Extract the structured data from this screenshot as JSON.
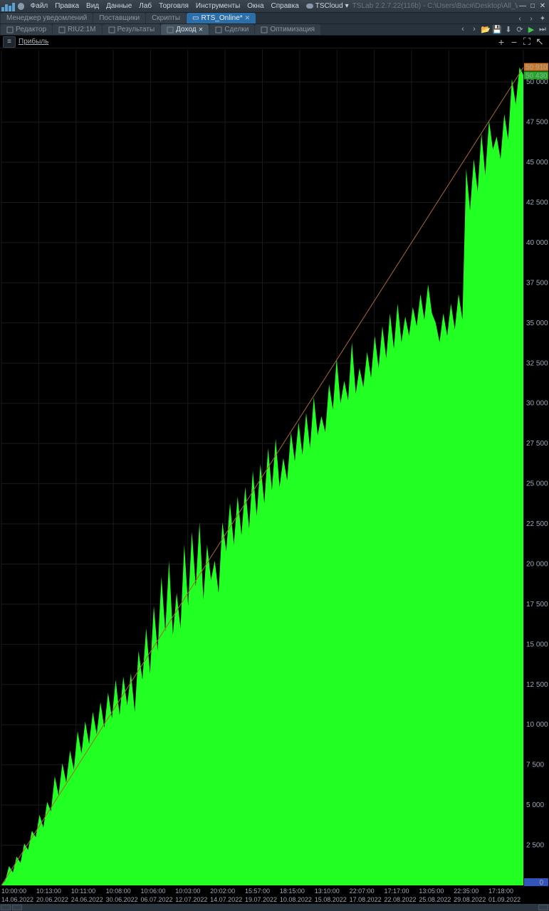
{
  "app": {
    "title": "TSLab 2.2.7.22(116b) - C:\\Users\\Вася\\Desktop\\All_Worked_Scripts_02"
  },
  "menu": {
    "items": [
      "Файл",
      "Правка",
      "Вид",
      "Данные",
      "Лаб",
      "Торговля",
      "Инструменты",
      "Окна",
      "Справка"
    ],
    "cloud": "TSCloud"
  },
  "window_buttons": {
    "min": "—",
    "max": "□",
    "close": "✕"
  },
  "maintabs": {
    "items": [
      {
        "label": "Менеджер уведомлений",
        "active": false
      },
      {
        "label": "Поставщики",
        "active": false
      },
      {
        "label": "Скрипты",
        "active": false
      },
      {
        "label": "RTS_Online*",
        "active": true
      }
    ]
  },
  "subtabs": {
    "items": [
      {
        "label": "Редактор",
        "active": false
      },
      {
        "label": "RIU2:1M",
        "active": false
      },
      {
        "label": "Результаты",
        "active": false
      },
      {
        "label": "Доход",
        "active": true
      },
      {
        "label": "Сделки",
        "active": false
      },
      {
        "label": "Оптимизация",
        "active": false
      }
    ]
  },
  "chart_toolbar": {
    "profit_label": "Прибыль"
  },
  "chart": {
    "type": "area",
    "background_color": "#000000",
    "grid_color": "#1a1a1a",
    "fill_color": "#22ff22",
    "trend_color": "#aa6633",
    "text_color": "#9aa8b5",
    "marker1": {
      "value": "50 910",
      "bg": "#cc7722"
    },
    "marker2": {
      "value": "50 430",
      "bg": "#22aa22"
    },
    "zero_marker": {
      "value": "0",
      "bg": "#3355bb"
    },
    "ylim": [
      0,
      52000
    ],
    "yticks": [
      2500,
      5000,
      7500,
      10000,
      12500,
      15000,
      17500,
      20000,
      22500,
      25000,
      27500,
      30000,
      32500,
      35000,
      37500,
      40000,
      42500,
      45000,
      47500,
      50000
    ],
    "ytick_labels": [
      "2 500",
      "5 000",
      "7 500",
      "10 000",
      "12 500",
      "15 000",
      "17 500",
      "20 000",
      "22 500",
      "25 000",
      "27 500",
      "30 000",
      "32 500",
      "35 000",
      "37 500",
      "40 000",
      "42 500",
      "45 000",
      "47 500",
      "50 000"
    ],
    "xticks_top": [
      "10:00:00",
      "10:13:00",
      "10:11:00",
      "10:08:00",
      "10:06:00",
      "10:03:00",
      "20:02:00",
      "15:57:00",
      "18:15:00",
      "13:10:00",
      "22:07:00",
      "17:17:00",
      "13:05:00",
      "22:35:00",
      "17:18:00"
    ],
    "xticks_bot": [
      "14.06.2022",
      "20.06.2022",
      "24.06.2022",
      "30.06.2022",
      "06.07.2022",
      "12.07.2022",
      "14.07.2022",
      "19.07.2022",
      "10.08.2022",
      "15.08.2022",
      "17.08.2022",
      "22.08.2022",
      "25.08.2022",
      "29.08.2022",
      "01.09.2022"
    ],
    "series": [
      0,
      300,
      1200,
      800,
      1800,
      1400,
      2600,
      2200,
      3400,
      3000,
      4400,
      3600,
      5200,
      4600,
      6800,
      5600,
      7600,
      6400,
      8400,
      7200,
      9600,
      8200,
      10200,
      8800,
      10800,
      9400,
      11400,
      9800,
      12000,
      10400,
      12800,
      10600,
      13000,
      11200,
      13200,
      10800,
      14600,
      12800,
      16000,
      13200,
      17400,
      14600,
      19200,
      15800,
      20200,
      15600,
      18200,
      16000,
      21200,
      17400,
      22000,
      18600,
      22600,
      17800,
      21200,
      19000,
      20200,
      18200,
      22600,
      20800,
      23800,
      21200,
      24200,
      21800,
      24800,
      22200,
      25800,
      23000,
      26200,
      23800,
      27200,
      24600,
      27800,
      24800,
      26600,
      25200,
      28200,
      26400,
      28800,
      26800,
      29400,
      27200,
      30400,
      28000,
      29200,
      28200,
      31200,
      29600,
      32800,
      30000,
      31400,
      30200,
      33800,
      30600,
      32200,
      31000,
      33200,
      31600,
      34200,
      32200,
      34800,
      32800,
      35600,
      33400,
      36200,
      33800,
      35400,
      34200,
      36000,
      34800,
      36800,
      35200,
      37400,
      35600,
      35000,
      33800,
      35600,
      34200,
      36200,
      34600,
      36800,
      35200,
      44600,
      42000,
      45200,
      43200,
      46800,
      44200,
      47600,
      45800,
      46600,
      45200,
      48000,
      46400,
      50200,
      48600,
      50910,
      50430
    ],
    "trend_start": 0,
    "trend_end": 50910
  }
}
